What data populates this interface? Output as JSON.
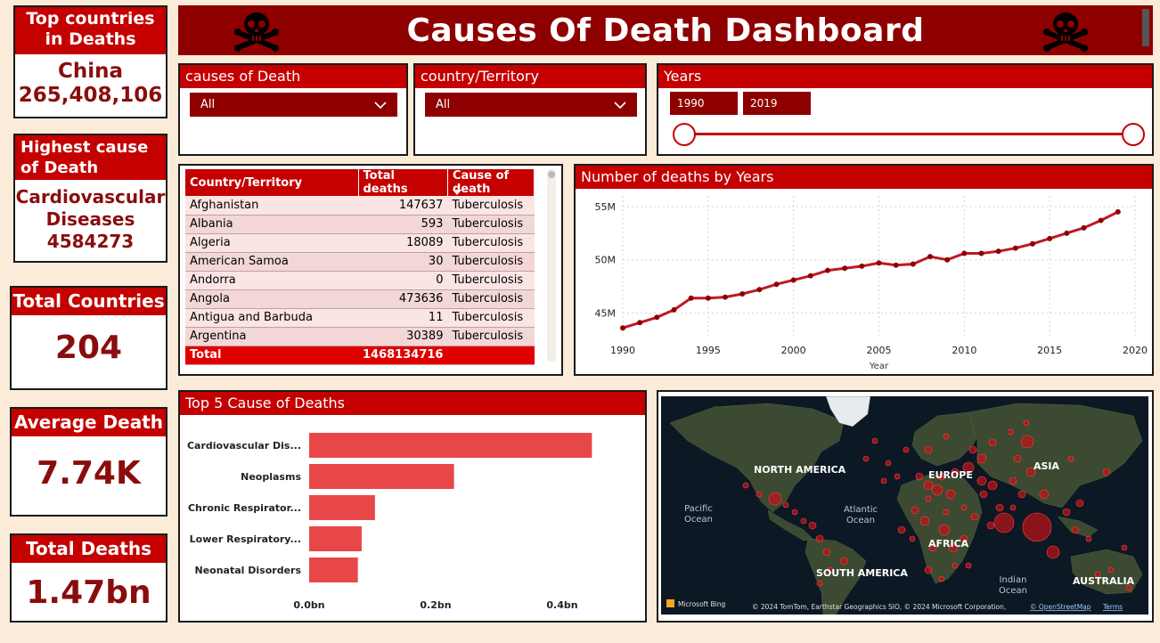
{
  "title": "Causes Of Death Dashboard",
  "kpis": {
    "top_country": {
      "label": "Top countries in Deaths",
      "country": "China",
      "value": "265,408,106"
    },
    "highest_cause": {
      "label": "Highest cause of Death",
      "cause_line1": "Cardiovascular",
      "cause_line2": "Diseases",
      "value": "4584273"
    },
    "total_countries": {
      "label": "Total Countries",
      "value": "204"
    },
    "average_death": {
      "label": "Average Death",
      "value": "7.74K"
    },
    "total_deaths": {
      "label": "Total Deaths",
      "value": "1.47bn"
    }
  },
  "slicers": {
    "causes": {
      "label": "causes of Death",
      "value": "All"
    },
    "country": {
      "label": "country/Territory",
      "value": "All"
    },
    "years": {
      "label": "Years",
      "from": "1990",
      "to": "2019"
    }
  },
  "table": {
    "headers": [
      "Country/Territory",
      "Total deaths",
      "Cause of death"
    ],
    "rows": [
      {
        "country": "Afghanistan",
        "deaths": "147637",
        "cause": "Tuberculosis"
      },
      {
        "country": "Albania",
        "deaths": "593",
        "cause": "Tuberculosis"
      },
      {
        "country": "Algeria",
        "deaths": "18089",
        "cause": "Tuberculosis"
      },
      {
        "country": "American Samoa",
        "deaths": "30",
        "cause": "Tuberculosis"
      },
      {
        "country": "Andorra",
        "deaths": "0",
        "cause": "Tuberculosis"
      },
      {
        "country": "Angola",
        "deaths": "473636",
        "cause": "Tuberculosis"
      },
      {
        "country": "Antigua and Barbuda",
        "deaths": "11",
        "cause": "Tuberculosis"
      },
      {
        "country": "Argentina",
        "deaths": "30389",
        "cause": "Tuberculosis"
      }
    ],
    "total_label": "Total",
    "total_value": "1468134716"
  },
  "map": {
    "labels": {
      "north_america": "NORTH AMERICA",
      "europe": "EUROPE",
      "asia": "ASIA",
      "pacific": "Pacific Ocean",
      "atlantic": "Atlantic Ocean",
      "africa": "AFRICA",
      "south_america": "SOUTH AMERICA",
      "indian": "Indian Ocean",
      "australia": "AUSTRALIA"
    },
    "bing": "Microsoft Bing",
    "credits": "© 2024 TomTom, Earthstar Geographics SIO, © 2024 Microsoft Corporation,",
    "osm": "© OpenStreetMap",
    "terms": "Terms"
  },
  "chart_data": [
    {
      "type": "line",
      "title": "Number of deaths by Years",
      "xlabel": "Year",
      "ylabel": "",
      "x": [
        1990,
        1991,
        1992,
        1993,
        1994,
        1995,
        1996,
        1997,
        1998,
        1999,
        2000,
        2001,
        2002,
        2003,
        2004,
        2005,
        2006,
        2007,
        2008,
        2009,
        2010,
        2011,
        2012,
        2013,
        2014,
        2015,
        2016,
        2017,
        2018,
        2019
      ],
      "series": [
        {
          "values": [
            43.6,
            44.1,
            44.6,
            45.3,
            46.4,
            46.4,
            46.5,
            46.8,
            47.2,
            47.7,
            48.1,
            48.5,
            49.0,
            49.2,
            49.4,
            49.7,
            49.5,
            49.6,
            50.3,
            50.0,
            50.6,
            50.6,
            50.8,
            51.1,
            51.5,
            52.0,
            52.5,
            53.0,
            53.7,
            54.5
          ]
        }
      ],
      "xlim": [
        1990,
        2020
      ],
      "xticks": [
        1990,
        1995,
        2000,
        2005,
        2010,
        2015,
        2020
      ],
      "ylim": [
        42.7,
        56
      ],
      "yticks": [
        {
          "value": 45,
          "label": "45M"
        },
        {
          "value": 50,
          "label": "50M"
        },
        {
          "value": 55,
          "label": "55M"
        }
      ],
      "colors": {
        "line": "#c0182a",
        "point": "#8e0000"
      },
      "grid": true
    },
    {
      "type": "bar",
      "orientation": "horizontal",
      "title": "Top 5 Cause of Deaths",
      "categories": [
        "Cardiovascular Dis...",
        "Neoplasms",
        "Chronic Respirator...",
        "Lower Respiratory...",
        "Neonatal Disorders"
      ],
      "values": [
        0.447,
        0.229,
        0.104,
        0.083,
        0.077
      ],
      "xlim": [
        0,
        0.5
      ],
      "xticks": [
        {
          "value": 0,
          "label": "0.0bn"
        },
        {
          "value": 0.2,
          "label": "0.2bn"
        },
        {
          "value": 0.4,
          "label": "0.4bn"
        }
      ],
      "colors": {
        "bar": "#e8474a"
      }
    }
  ]
}
